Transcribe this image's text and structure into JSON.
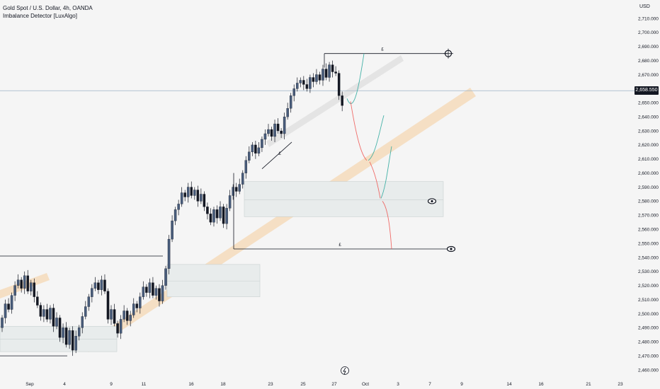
{
  "legend": {
    "symbol_line": "Gold Spot / U.S. Dollar, 4h, OANDA",
    "indicator_line": "Imbalance Detector [LuxAlgo]"
  },
  "currency_label": "USD",
  "current_price": "2,658.550",
  "colors": {
    "bull": "#485c7b",
    "bear": "#131722",
    "bull_hollow": "#ffffff",
    "trend_band": "#f7c58a",
    "trend_band_gray": "#e0e0e0",
    "zone_fill": "#e8ecec",
    "zone_border": "#c8d0d0",
    "green_path": "#26a69a",
    "red_path": "#ef5350",
    "price_line": "#9fb3c8"
  },
  "chart_data": {
    "type": "candlestick",
    "title": "",
    "xlabel": "",
    "ylabel": "",
    "y_tick_labels": [
      "2,460.000",
      "2,470.000",
      "2,480.000",
      "2,490.000",
      "2,500.000",
      "2,510.000",
      "2,520.000",
      "2,530.000",
      "2,540.000",
      "2,550.000",
      "2,560.000",
      "2,570.000",
      "2,580.000",
      "2,590.000",
      "2,600.000",
      "2,610.000",
      "2,620.000",
      "2,630.000",
      "2,640.000",
      "2,650.000",
      "2,660.000",
      "2,670.000",
      "2,680.000",
      "2,690.000",
      "2,700.000",
      "2,710.000"
    ],
    "x_tick_labels": [
      "Sep",
      "4",
      "9",
      "11",
      "16",
      "18",
      "23",
      "25",
      "27",
      "Oct",
      "3",
      "7",
      "9",
      "14",
      "16",
      "21",
      "23"
    ],
    "ylim": [
      2457,
      2718
    ],
    "grid": false,
    "closes": [
      2497,
      2507,
      2503,
      2513,
      2520,
      2524,
      2518,
      2527,
      2516,
      2522,
      2512,
      2506,
      2498,
      2503,
      2496,
      2504,
      2491,
      2497,
      2483,
      2490,
      2478,
      2488,
      2474,
      2484,
      2490,
      2498,
      2505,
      2512,
      2518,
      2522,
      2517,
      2524,
      2516,
      2496,
      2503,
      2493,
      2486,
      2496,
      2502,
      2495,
      2499,
      2507,
      2504,
      2512,
      2519,
      2515,
      2522,
      2513,
      2518,
      2509,
      2520,
      2532,
      2553,
      2566,
      2574,
      2578,
      2586,
      2583,
      2590,
      2584,
      2588,
      2580,
      2585,
      2576,
      2571,
      2565,
      2574,
      2568,
      2576,
      2564,
      2575,
      2584,
      2590,
      2587,
      2592,
      2600,
      2609,
      2615,
      2620,
      2614,
      2618,
      2624,
      2628,
      2631,
      2626,
      2635,
      2630,
      2628,
      2640,
      2646,
      2655,
      2660,
      2664,
      2666,
      2663,
      2660,
      2668,
      2665,
      2670,
      2666,
      2674,
      2668,
      2677,
      2672,
      2671,
      2655,
      2648
    ],
    "annotations": [
      "£",
      "£",
      "£"
    ]
  }
}
